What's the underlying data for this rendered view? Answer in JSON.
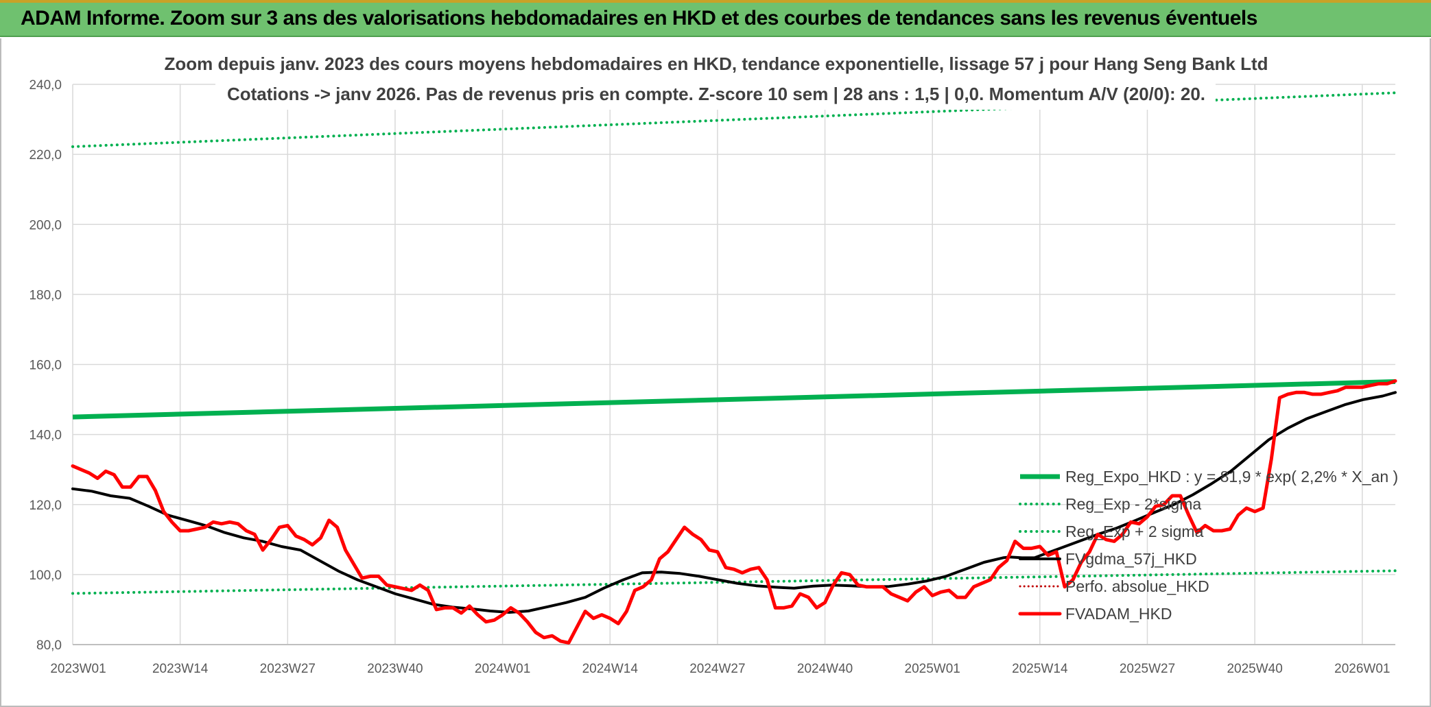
{
  "banner": {
    "title": "ADAM Informe. Zoom sur 3 ans des valorisations hebdomadaires en HKD et des courbes de tendances sans les revenus éventuels"
  },
  "colors": {
    "reg_expo": "#00b050",
    "reg_sigma": "#00b050",
    "fvgdma": "#000000",
    "perfo": "#c00000",
    "fvadam": "#ff0000",
    "grid": "#d9d9d9",
    "banner": "#6fc16f"
  },
  "chart_data": {
    "type": "line",
    "title_lines": [
      "Zoom depuis janv. 2023 des cours moyens hebdomadaires en HKD, tendance exponentielle, lissage 57 j pour Hang Seng Bank Ltd",
      "Cotations -> janv 2026. Pas de revenus pris en compte. Z-score 10 sem | 28 ans : 1,5 | 0,0. Momentum A/V (20/0): 20."
    ],
    "x_ticks": [
      "2023W01",
      "2023W14",
      "2023W27",
      "2023W40",
      "2024W01",
      "2024W14",
      "2024W27",
      "2024W40",
      "2025W01",
      "2025W14",
      "2025W27",
      "2025W40",
      "2026W01"
    ],
    "x_tick_weeks": [
      0,
      13,
      26,
      39,
      52,
      65,
      78,
      91,
      104,
      117,
      130,
      143,
      156
    ],
    "x_range_weeks": [
      0,
      160
    ],
    "y_ticks": [
      "80,0",
      "100,0",
      "120,0",
      "140,0",
      "160,0",
      "180,0",
      "200,0",
      "220,0",
      "240,0"
    ],
    "y_range": [
      80,
      240
    ],
    "grid": true,
    "legend_position": "right-center",
    "series": [
      {
        "name": "Reg_Expo_HKD : y = 81,9 * exp( 2,2% *  X_an )",
        "style": "solid-thick",
        "points": [
          [
            0,
            145.0
          ],
          [
            160,
            155.1
          ]
        ]
      },
      {
        "name": "Reg_Exp - 2*sigma",
        "style": "dotted",
        "points": [
          [
            0,
            94.6
          ],
          [
            160,
            101.1
          ]
        ]
      },
      {
        "name": "Reg_Exp + 2 sigma",
        "style": "dotted",
        "points": [
          [
            0,
            222.2
          ],
          [
            160,
            237.6
          ]
        ]
      },
      {
        "name": "FVgdma_57j_HKD",
        "style": "solid",
        "points": [
          [
            0,
            124.5
          ],
          [
            3,
            123.8
          ],
          [
            6,
            122.5
          ],
          [
            9,
            121.8
          ],
          [
            12,
            119.5
          ],
          [
            15,
            117
          ],
          [
            18,
            115.5
          ],
          [
            21,
            114
          ],
          [
            24,
            112
          ],
          [
            27,
            110.5
          ],
          [
            30,
            109.5
          ],
          [
            33,
            108
          ],
          [
            36,
            107
          ],
          [
            39,
            104
          ],
          [
            42,
            101
          ],
          [
            45,
            98.5
          ],
          [
            48,
            96.5
          ],
          [
            51,
            94.5
          ],
          [
            54,
            93
          ],
          [
            57,
            91.5
          ],
          [
            60,
            90.7
          ],
          [
            63,
            90.2
          ],
          [
            66,
            89.6
          ],
          [
            69,
            89.2
          ],
          [
            72,
            89.6
          ],
          [
            75,
            90.8
          ],
          [
            78,
            92
          ],
          [
            81,
            93.5
          ],
          [
            84,
            96.2
          ],
          [
            87,
            98.5
          ],
          [
            90,
            100.5
          ],
          [
            93,
            100.7
          ],
          [
            96,
            100.3
          ],
          [
            99,
            99.5
          ],
          [
            102,
            98.5
          ],
          [
            105,
            97.5
          ],
          [
            108,
            96.8
          ],
          [
            111,
            96.4
          ],
          [
            114,
            96.1
          ],
          [
            117,
            96.7
          ],
          [
            120,
            97
          ],
          [
            123,
            96.8
          ],
          [
            126,
            96.5
          ],
          [
            129,
            96.6
          ],
          [
            132,
            97.3
          ],
          [
            135,
            98.2
          ],
          [
            138,
            99.5
          ],
          [
            141,
            101.5
          ],
          [
            144,
            103.5
          ],
          [
            147,
            104.8
          ],
          [
            148,
            105
          ],
          [
            150,
            104.8
          ],
          [
            152,
            104.8
          ],
          [
            153,
            105.5
          ],
          [
            156,
            107.5
          ],
          [
            159,
            109.5
          ],
          [
            162,
            111.5
          ],
          [
            165,
            113.3
          ],
          [
            168,
            115.5
          ],
          [
            171,
            117.8
          ],
          [
            174,
            120
          ],
          [
            177,
            122.8
          ],
          [
            180,
            126
          ],
          [
            183,
            129.5
          ],
          [
            186,
            134
          ],
          [
            189,
            138.5
          ],
          [
            192,
            141.8
          ],
          [
            195,
            144.5
          ],
          [
            198,
            146.5
          ],
          [
            201,
            148.5
          ],
          [
            204,
            150
          ],
          [
            207,
            151
          ],
          [
            209,
            152
          ]
        ]
      },
      {
        "name": "Perfo. absolue_HKD",
        "style": "dotted-red",
        "points": []
      },
      {
        "name": "FVADAM_HKD",
        "style": "solid-thick",
        "points": [
          [
            0,
            131
          ],
          [
            1,
            130
          ],
          [
            2,
            129
          ],
          [
            3,
            127.5
          ],
          [
            4,
            129.5
          ],
          [
            5,
            128.5
          ],
          [
            6,
            125
          ],
          [
            7,
            125
          ],
          [
            8,
            128
          ],
          [
            9,
            128
          ],
          [
            10,
            124
          ],
          [
            11,
            118
          ],
          [
            12,
            115
          ],
          [
            13,
            112.5
          ],
          [
            14,
            112.5
          ],
          [
            15,
            113
          ],
          [
            16,
            113.5
          ],
          [
            17,
            115
          ],
          [
            18,
            114.5
          ],
          [
            19,
            115
          ],
          [
            20,
            114.5
          ],
          [
            21,
            112.5
          ],
          [
            22,
            111.5
          ],
          [
            23,
            107
          ],
          [
            24,
            110
          ],
          [
            25,
            113.5
          ],
          [
            26,
            114
          ],
          [
            27,
            111
          ],
          [
            28,
            110
          ],
          [
            29,
            108.5
          ],
          [
            30,
            110.5
          ],
          [
            31,
            115.5
          ],
          [
            32,
            113.5
          ],
          [
            33,
            107
          ],
          [
            34,
            103
          ],
          [
            35,
            99
          ],
          [
            36,
            99.5
          ],
          [
            37,
            99.5
          ],
          [
            38,
            97
          ],
          [
            39,
            96.5
          ],
          [
            40,
            96
          ],
          [
            41,
            95.5
          ],
          [
            42,
            97
          ],
          [
            43,
            95.5
          ],
          [
            44,
            90
          ],
          [
            45,
            90.5
          ],
          [
            46,
            90.5
          ],
          [
            47,
            89
          ],
          [
            48,
            91
          ],
          [
            49,
            88.5
          ],
          [
            50,
            86.5
          ],
          [
            51,
            87
          ],
          [
            52,
            88.5
          ],
          [
            53,
            90.5
          ],
          [
            54,
            89
          ],
          [
            55,
            86.5
          ],
          [
            56,
            83.5
          ],
          [
            57,
            82
          ],
          [
            58,
            82.5
          ],
          [
            59,
            81
          ],
          [
            60,
            80.5
          ],
          [
            61,
            85
          ],
          [
            62,
            89.5
          ],
          [
            63,
            87.5
          ],
          [
            64,
            88.5
          ],
          [
            65,
            87.5
          ],
          [
            66,
            86
          ],
          [
            67,
            89.5
          ],
          [
            68,
            95.5
          ],
          [
            69,
            96.5
          ],
          [
            70,
            98.5
          ],
          [
            71,
            104.5
          ],
          [
            72,
            106.5
          ],
          [
            73,
            110
          ],
          [
            74,
            113.5
          ],
          [
            75,
            111.5
          ],
          [
            76,
            110
          ],
          [
            77,
            107
          ],
          [
            78,
            106.5
          ],
          [
            79,
            102
          ],
          [
            80,
            101.5
          ],
          [
            81,
            100.5
          ],
          [
            82,
            101.5
          ],
          [
            83,
            102
          ],
          [
            84,
            98.5
          ],
          [
            85,
            90.5
          ],
          [
            86,
            90.5
          ],
          [
            87,
            91
          ],
          [
            88,
            94.5
          ],
          [
            89,
            93.5
          ],
          [
            90,
            90.5
          ],
          [
            91,
            92
          ],
          [
            92,
            97
          ],
          [
            93,
            100.5
          ],
          [
            94,
            100
          ],
          [
            95,
            97
          ],
          [
            96,
            96.5
          ],
          [
            97,
            96.5
          ],
          [
            98,
            96.5
          ],
          [
            99,
            94.5
          ],
          [
            100,
            93.5
          ],
          [
            101,
            92.5
          ],
          [
            102,
            95
          ],
          [
            103,
            96.5
          ],
          [
            104,
            94
          ],
          [
            105,
            95
          ],
          [
            106,
            95.5
          ],
          [
            107,
            93.5
          ],
          [
            108,
            93.5
          ],
          [
            109,
            96.5
          ],
          [
            110,
            97.5
          ],
          [
            111,
            98.5
          ],
          [
            112,
            102
          ],
          [
            113,
            104
          ],
          [
            114,
            109.5
          ],
          [
            115,
            107.5
          ],
          [
            116,
            107.5
          ],
          [
            117,
            108
          ],
          [
            118,
            105.5
          ],
          [
            119,
            106.5
          ],
          [
            120,
            96.5
          ],
          [
            121,
            98.5
          ],
          [
            122,
            103.5
          ],
          [
            123,
            106.5
          ],
          [
            124,
            111.5
          ],
          [
            125,
            110
          ],
          [
            126,
            109.5
          ],
          [
            127,
            111.5
          ],
          [
            128,
            115
          ],
          [
            129,
            114.5
          ],
          [
            130,
            116.5
          ],
          [
            131,
            119.5
          ],
          [
            132,
            120
          ],
          [
            133,
            122.5
          ],
          [
            134,
            122.5
          ],
          [
            135,
            117
          ],
          [
            136,
            112
          ],
          [
            137,
            114
          ],
          [
            138,
            112.5
          ],
          [
            139,
            112.5
          ],
          [
            140,
            113
          ],
          [
            141,
            117
          ],
          [
            142,
            119
          ],
          [
            143,
            118
          ],
          [
            144,
            119
          ],
          [
            145,
            133
          ],
          [
            146,
            150.5
          ],
          [
            147,
            151.5
          ],
          [
            148,
            152
          ],
          [
            149,
            152
          ],
          [
            150,
            151.5
          ],
          [
            151,
            151.5
          ],
          [
            152,
            152
          ],
          [
            153,
            152.5
          ],
          [
            154,
            153.5
          ],
          [
            155,
            153.5
          ],
          [
            156,
            153.5
          ],
          [
            157,
            154
          ],
          [
            158,
            154.5
          ],
          [
            159,
            154.5
          ],
          [
            160,
            155.3
          ]
        ]
      }
    ]
  }
}
